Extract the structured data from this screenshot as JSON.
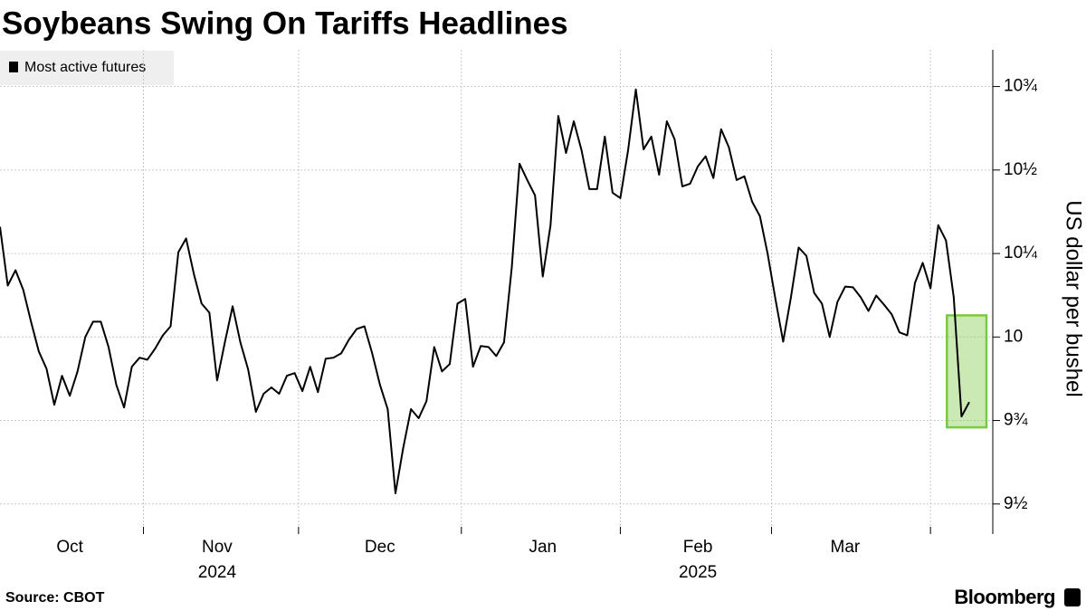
{
  "chart_data": {
    "type": "line",
    "title": "Soybeans Swing On Tariffs Headlines",
    "y_axis_label": "US dollar per bushel",
    "source": "Source: CBOT",
    "brand": "Bloomberg",
    "legend_position": "top-left",
    "grid": true,
    "categories": [
      null,
      null,
      null,
      null,
      null,
      null,
      null,
      null,
      null,
      "Oct",
      null,
      null,
      null,
      null,
      null,
      null,
      null,
      null,
      null,
      null,
      null,
      null,
      null,
      null,
      null,
      null,
      null,
      null,
      "Nov",
      null,
      null,
      null,
      null,
      null,
      null,
      null,
      null,
      null,
      null,
      null,
      null,
      null,
      null,
      null,
      null,
      null,
      null,
      null,
      null,
      "Dec",
      null,
      null,
      null,
      null,
      null,
      null,
      null,
      null,
      null,
      null,
      null,
      null,
      null,
      null,
      null,
      null,
      null,
      null,
      null,
      null,
      "Jan",
      null,
      null,
      null,
      null,
      null,
      null,
      null,
      null,
      null,
      null,
      null,
      null,
      null,
      null,
      null,
      null,
      null,
      null,
      null,
      "Feb",
      null,
      null,
      null,
      null,
      null,
      null,
      null,
      null,
      null,
      null,
      null,
      null,
      null,
      null,
      null,
      null,
      null,
      null,
      "Mar",
      null,
      null,
      null,
      null,
      null,
      null,
      null,
      null,
      null,
      null,
      null,
      null,
      null,
      null,
      null,
      null
    ],
    "years": [
      {
        "label": "2024",
        "month": "Nov"
      },
      {
        "label": "2025",
        "month": "Feb"
      }
    ],
    "series": [
      {
        "name": "Most active futures",
        "color": "#000000",
        "values": [
          10.33,
          10.154,
          10.2,
          10.141,
          10.046,
          9.957,
          9.905,
          9.797,
          9.884,
          9.824,
          9.897,
          10.0,
          10.046,
          10.046,
          9.97,
          9.857,
          9.789,
          9.911,
          9.938,
          9.932,
          9.965,
          10.005,
          10.032,
          10.254,
          10.295,
          10.189,
          10.1,
          10.073,
          9.87,
          9.984,
          10.092,
          9.984,
          9.903,
          9.776,
          9.83,
          9.849,
          9.83,
          9.884,
          9.892,
          9.838,
          9.911,
          9.835,
          9.935,
          9.938,
          9.951,
          9.992,
          10.024,
          10.032,
          9.951,
          9.857,
          9.784,
          9.532,
          9.668,
          9.784,
          9.757,
          9.808,
          9.97,
          9.897,
          9.919,
          10.1,
          10.114,
          9.911,
          9.973,
          9.97,
          9.943,
          9.984,
          10.208,
          10.519,
          10.47,
          10.424,
          10.181,
          10.335,
          10.662,
          10.551,
          10.646,
          10.559,
          10.443,
          10.443,
          10.6,
          10.432,
          10.416,
          10.559,
          10.741,
          10.562,
          10.6,
          10.486,
          10.646,
          10.592,
          10.451,
          10.459,
          10.511,
          10.541,
          10.476,
          10.622,
          10.568,
          10.47,
          10.481,
          10.405,
          10.362,
          10.249,
          10.114,
          9.986,
          10.119,
          10.268,
          10.243,
          10.132,
          10.1,
          10.0,
          10.105,
          10.151,
          10.149,
          10.119,
          10.078,
          10.124,
          10.097,
          10.068,
          10.014,
          10.005,
          10.162,
          10.222,
          10.146,
          10.335,
          10.289,
          10.119,
          9.762,
          9.805
        ]
      }
    ],
    "highlight_color": "#7ac943",
    "ylim": [
      9.41,
      10.86
    ],
    "yticks": [
      {
        "value": 9.5,
        "label": "9½"
      },
      {
        "value": 9.75,
        "label": "9¾"
      },
      10,
      {
        "value": 10.25,
        "label": "10¼"
      },
      {
        "value": 10.5,
        "label": "10½"
      },
      {
        "value": 10.75,
        "label": "10¾"
      }
    ]
  }
}
